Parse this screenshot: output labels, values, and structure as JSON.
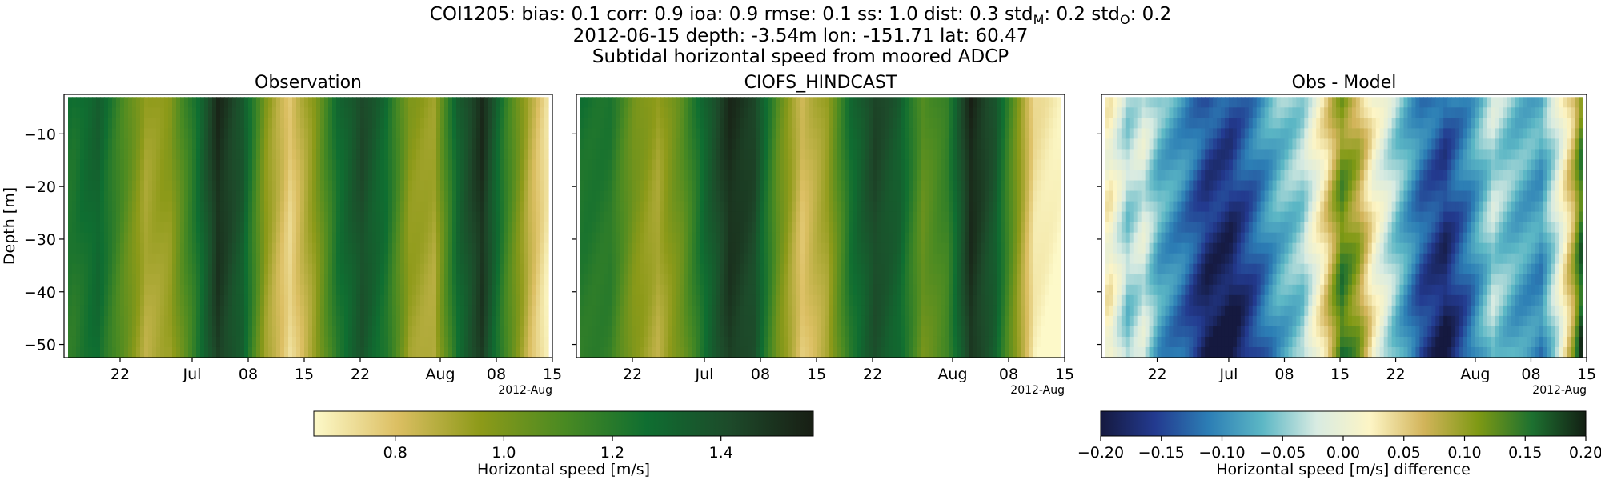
{
  "figure": {
    "title_line1": "COI1205: bias: 0.1  corr: 0.9  ioa: 0.9  rmse: 0.1  ss: 1.0  dist: 0.3  std",
    "title_line1_sub_m": "M",
    "title_line1_mid": ": 0.2  std",
    "title_line1_sub_o": "O",
    "title_line1_end": ": 0.2",
    "title_line2": "2012-06-15 depth: -3.54m lon: -151.71 lat: 60.47",
    "title_line3": "Subtidal horizontal speed from moored ADCP"
  },
  "colors": {
    "speed_cmap": [
      "#fdf9c9",
      "#dcbf63",
      "#8d9a19",
      "#4a8a22",
      "#0f6e31",
      "#1d4a2a",
      "#181e14"
    ],
    "diff_cmap": [
      "#15193f",
      "#233a8f",
      "#2c7eb5",
      "#5cb7c5",
      "#d8ebe2",
      "#fdf5c5",
      "#d2b45a",
      "#7e9914",
      "#1d7130",
      "#131f14"
    ]
  },
  "chart_data": [
    {
      "type": "heatmap",
      "title": "Observation",
      "ylabel": "Depth [m]",
      "ylim": [
        -52.5,
        -2.5
      ],
      "yticks": [
        -10,
        -20,
        -30,
        -40,
        -50
      ],
      "xlim": [
        "2012-06-15",
        "2012-08-15"
      ],
      "xtick_labels": [
        "22",
        "Jul",
        "08",
        "15",
        "22",
        "Aug",
        "08",
        "15"
      ],
      "x_offset_label": "2012-Aug",
      "colorbar": "speed",
      "time_profile": [
        [
          "2012-06-16",
          1.22
        ],
        [
          "2012-06-19",
          1.3
        ],
        [
          "2012-06-22",
          1.1
        ],
        [
          "2012-06-25",
          0.9
        ],
        [
          "2012-06-28",
          0.95
        ],
        [
          "2012-07-01",
          1.2
        ],
        [
          "2012-07-04",
          1.5
        ],
        [
          "2012-07-07",
          1.35
        ],
        [
          "2012-07-10",
          0.95
        ],
        [
          "2012-07-13",
          0.75
        ],
        [
          "2012-07-16",
          0.95
        ],
        [
          "2012-07-19",
          1.25
        ],
        [
          "2012-07-22",
          1.4
        ],
        [
          "2012-07-25",
          1.25
        ],
        [
          "2012-07-28",
          0.95
        ],
        [
          "2012-07-31",
          0.9
        ],
        [
          "2012-08-03",
          1.3
        ],
        [
          "2012-08-06",
          1.5
        ],
        [
          "2012-08-09",
          1.15
        ],
        [
          "2012-08-12",
          0.85
        ],
        [
          "2012-08-14",
          0.7
        ]
      ]
    },
    {
      "type": "heatmap",
      "title": "CIOFS_HINDCAST",
      "ylim": [
        -52.5,
        -2.5
      ],
      "yticks": [
        -10,
        -20,
        -30,
        -40,
        -50
      ],
      "xlim": [
        "2012-06-15",
        "2012-08-15"
      ],
      "xtick_labels": [
        "22",
        "Jul",
        "08",
        "15",
        "22",
        "Aug",
        "08",
        "15"
      ],
      "x_offset_label": "2012-Aug",
      "colorbar": "speed",
      "time_profile": [
        [
          "2012-06-16",
          1.22
        ],
        [
          "2012-06-19",
          1.2
        ],
        [
          "2012-06-22",
          1.0
        ],
        [
          "2012-06-25",
          0.9
        ],
        [
          "2012-06-28",
          1.05
        ],
        [
          "2012-07-01",
          1.3
        ],
        [
          "2012-07-04",
          1.5
        ],
        [
          "2012-07-07",
          1.42
        ],
        [
          "2012-07-10",
          1.05
        ],
        [
          "2012-07-13",
          0.8
        ],
        [
          "2012-07-16",
          0.92
        ],
        [
          "2012-07-19",
          1.25
        ],
        [
          "2012-07-22",
          1.42
        ],
        [
          "2012-07-25",
          1.32
        ],
        [
          "2012-07-28",
          1.05
        ],
        [
          "2012-07-31",
          1.15
        ],
        [
          "2012-08-03",
          1.52
        ],
        [
          "2012-08-06",
          1.35
        ],
        [
          "2012-08-09",
          0.95
        ],
        [
          "2012-08-11",
          0.7
        ],
        [
          "2012-08-14",
          0.65
        ]
      ]
    },
    {
      "type": "heatmap",
      "title": "Obs - Model",
      "ylim": [
        -52.5,
        -2.5
      ],
      "yticks": [
        -10,
        -20,
        -30,
        -40,
        -50
      ],
      "xlim": [
        "2012-06-15",
        "2012-08-15"
      ],
      "xtick_labels": [
        "22",
        "Jul",
        "08",
        "15",
        "22",
        "Aug",
        "08",
        "15"
      ],
      "x_offset_label": "2012-Aug",
      "colorbar": "diff",
      "time_profile": [
        [
          "2012-06-16",
          0.02
        ],
        [
          "2012-06-18",
          -0.05
        ],
        [
          "2012-06-20",
          -0.02
        ],
        [
          "2012-06-22",
          -0.08
        ],
        [
          "2012-06-25",
          -0.12
        ],
        [
          "2012-06-28",
          -0.18
        ],
        [
          "2012-07-01",
          -0.19
        ],
        [
          "2012-07-04",
          -0.14
        ],
        [
          "2012-07-07",
          -0.08
        ],
        [
          "2012-07-10",
          -0.05
        ],
        [
          "2012-07-13",
          0.05
        ],
        [
          "2012-07-15",
          0.14
        ],
        [
          "2012-07-17",
          0.1
        ],
        [
          "2012-07-19",
          0.02
        ],
        [
          "2012-07-22",
          -0.06
        ],
        [
          "2012-07-25",
          -0.14
        ],
        [
          "2012-07-28",
          -0.18
        ],
        [
          "2012-07-31",
          -0.12
        ],
        [
          "2012-08-03",
          -0.04
        ],
        [
          "2012-08-06",
          -0.08
        ],
        [
          "2012-08-09",
          -0.1
        ],
        [
          "2012-08-11",
          -0.02
        ],
        [
          "2012-08-13",
          0.08
        ],
        [
          "2012-08-14",
          0.16
        ]
      ]
    }
  ],
  "colorbars": {
    "speed": {
      "label": "Horizontal speed [m/s]",
      "range": [
        0.65,
        1.57
      ],
      "ticks": [
        0.8,
        1.0,
        1.2,
        1.4
      ],
      "tick_labels": [
        "0.8",
        "1.0",
        "1.2",
        "1.4"
      ]
    },
    "diff": {
      "label": "Horizontal speed [m/s] difference",
      "range": [
        -0.2,
        0.2
      ],
      "ticks": [
        -0.2,
        -0.15,
        -0.1,
        -0.05,
        0.0,
        0.05,
        0.1,
        0.15,
        0.2
      ],
      "tick_labels": [
        "−0.20",
        "−0.15",
        "−0.10",
        "−0.05",
        "0.00",
        "0.05",
        "0.10",
        "0.15",
        "0.20"
      ]
    }
  }
}
